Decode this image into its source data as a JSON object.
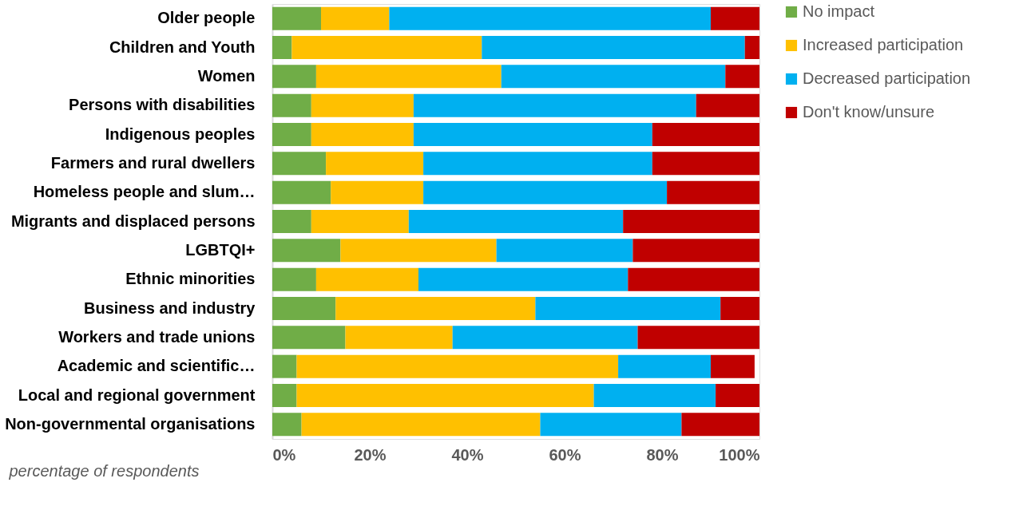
{
  "chart_data": {
    "type": "bar",
    "orientation": "horizontal",
    "stacked": true,
    "xlabel": "percentage of respondents",
    "categories": [
      "Older people",
      "Children and Youth",
      "Women",
      "Persons with disabilities",
      "Indigenous peoples",
      "Farmers and rural dwellers",
      "Homeless people and slum…",
      "Migrants and displaced persons",
      "LGBTQI+",
      "Ethnic minorities",
      "Business and industry",
      "Workers and trade unions",
      "Academic and scientific…",
      "Local and regional government",
      "Non-governmental organisations"
    ],
    "series": [
      {
        "name": "No impact",
        "color": "#70ad47",
        "values": [
          10,
          4,
          9,
          8,
          8,
          11,
          12,
          8,
          14,
          9,
          13,
          15,
          5,
          5,
          6
        ]
      },
      {
        "name": "Increased participation",
        "color": "#ffc000",
        "values": [
          14,
          39,
          38,
          21,
          21,
          20,
          19,
          20,
          32,
          21,
          41,
          22,
          66,
          61,
          49
        ]
      },
      {
        "name": "Decreased participation",
        "color": "#00b0f0",
        "values": [
          66,
          54,
          46,
          58,
          49,
          47,
          50,
          44,
          28,
          43,
          38,
          38,
          19,
          25,
          29
        ]
      },
      {
        "name": "Don't know/unsure",
        "color": "#c00000",
        "values": [
          10,
          3,
          7,
          13,
          22,
          22,
          19,
          28,
          26,
          27,
          8,
          25,
          9,
          9,
          16
        ]
      }
    ],
    "xlim": [
      0,
      100
    ],
    "xticks": [
      {
        "value": 0,
        "label": "0%"
      },
      {
        "value": 20,
        "label": "20%"
      },
      {
        "value": 40,
        "label": "40%"
      },
      {
        "value": 60,
        "label": "60%"
      },
      {
        "value": 80,
        "label": "80%"
      },
      {
        "value": 100,
        "label": "100%"
      }
    ],
    "grid": false,
    "legend": "right"
  }
}
